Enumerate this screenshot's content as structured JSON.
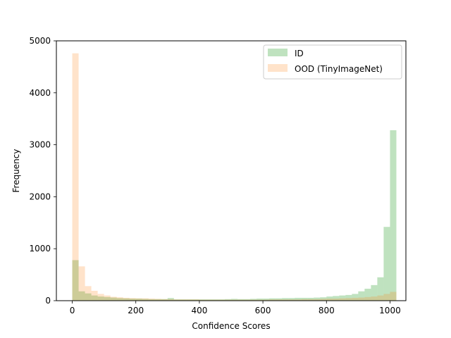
{
  "chart_data": {
    "type": "bar",
    "title": "",
    "xlabel": "Confidence Scores",
    "ylabel": "Frequency",
    "xlim": [
      -50,
      1050
    ],
    "ylim": [
      0,
      5000
    ],
    "xticks": [
      0,
      200,
      400,
      600,
      800,
      1000
    ],
    "yticks": [
      0,
      1000,
      2000,
      3000,
      4000,
      5000
    ],
    "grid": false,
    "legend_position": "top-right",
    "bin_edges": [
      0,
      20,
      40,
      60,
      80,
      100,
      120,
      140,
      160,
      180,
      200,
      220,
      240,
      260,
      280,
      300,
      320,
      340,
      360,
      380,
      400,
      420,
      440,
      460,
      480,
      500,
      520,
      540,
      560,
      580,
      600,
      620,
      640,
      660,
      680,
      700,
      720,
      740,
      760,
      780,
      800,
      820,
      840,
      860,
      880,
      900,
      920,
      940,
      960,
      980,
      1000
    ],
    "series": [
      {
        "name": "ID",
        "color": "#2ca02c",
        "opacity": 0.3,
        "values": [
          780,
          180,
          140,
          100,
          80,
          70,
          60,
          50,
          45,
          40,
          40,
          35,
          30,
          30,
          30,
          50,
          25,
          25,
          25,
          25,
          25,
          25,
          25,
          25,
          30,
          35,
          30,
          30,
          35,
          40,
          40,
          45,
          45,
          50,
          50,
          55,
          55,
          55,
          60,
          65,
          80,
          90,
          100,
          110,
          130,
          180,
          230,
          300,
          450,
          1420,
          3280
        ]
      },
      {
        "name": "OOD (TinyImageNet)",
        "color": "#ff7f0e",
        "opacity": 0.22,
        "values": [
          4760,
          660,
          280,
          190,
          130,
          100,
          75,
          65,
          55,
          50,
          45,
          45,
          40,
          35,
          30,
          30,
          25,
          25,
          25,
          25,
          20,
          20,
          20,
          20,
          20,
          20,
          20,
          20,
          20,
          20,
          20,
          25,
          25,
          25,
          25,
          25,
          30,
          30,
          30,
          35,
          40,
          40,
          45,
          50,
          55,
          60,
          70,
          80,
          100,
          130,
          170
        ]
      }
    ]
  }
}
